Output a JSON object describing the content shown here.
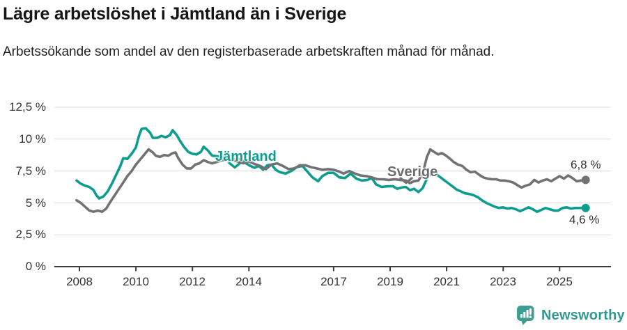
{
  "header": {
    "title": "Lägre arbetslöshet i Jämtland än i Sverige",
    "subtitle": "Arbetssökande som andel av den registerbaserade arbetskraften månad för månad."
  },
  "footer": {
    "brand": "Newsworthy",
    "logo_icon": "newsworthy-pin-barchart-icon",
    "brand_color": "#2f9a8d"
  },
  "chart_data": {
    "type": "line",
    "unit": "%",
    "grid": "horizontal",
    "x_axis": {
      "ticks": [
        "2008",
        "2010",
        "2012",
        "2014",
        "2017",
        "2019",
        "2021",
        "2023",
        "2025"
      ]
    },
    "y_axis": {
      "range": [
        0,
        12.5
      ],
      "ticks": [
        {
          "label": "12,5 %",
          "value": 12.5
        },
        {
          "label": "10 %",
          "value": 10
        },
        {
          "label": "7,5 %",
          "value": 7.5
        },
        {
          "label": "5 %",
          "value": 5
        },
        {
          "label": "2,5 %",
          "value": 2.5
        },
        {
          "label": "0 %",
          "value": 0
        }
      ]
    },
    "colors": {
      "jamtland": "#0c9d8e",
      "sverige": "#717275",
      "gridline": "#dcdcdc",
      "axis": "#3d3d3d",
      "annotation_text": "#333333"
    },
    "series": [
      {
        "id": "jamtland",
        "name": "Jämtland",
        "color": "#0c9d8e",
        "end_label": "4,6 %",
        "end_value": 4.6,
        "points": [
          [
            2007.9,
            6.75
          ],
          [
            2008.05,
            6.5
          ],
          [
            2008.2,
            6.35
          ],
          [
            2008.35,
            6.25
          ],
          [
            2008.5,
            6.0
          ],
          [
            2008.6,
            5.6
          ],
          [
            2008.7,
            5.35
          ],
          [
            2008.85,
            5.5
          ],
          [
            2009.0,
            5.9
          ],
          [
            2009.15,
            6.5
          ],
          [
            2009.3,
            7.2
          ],
          [
            2009.45,
            7.9
          ],
          [
            2009.55,
            8.5
          ],
          [
            2009.7,
            8.45
          ],
          [
            2009.85,
            8.85
          ],
          [
            2010.0,
            9.35
          ],
          [
            2010.1,
            10.2
          ],
          [
            2010.2,
            10.8
          ],
          [
            2010.35,
            10.85
          ],
          [
            2010.5,
            10.5
          ],
          [
            2010.6,
            10.1
          ],
          [
            2010.75,
            10.1
          ],
          [
            2010.9,
            10.25
          ],
          [
            2011.05,
            10.15
          ],
          [
            2011.2,
            10.3
          ],
          [
            2011.3,
            10.7
          ],
          [
            2011.45,
            10.3
          ],
          [
            2011.55,
            9.9
          ],
          [
            2011.7,
            9.4
          ],
          [
            2011.85,
            9.0
          ],
          [
            2012.0,
            8.85
          ],
          [
            2012.15,
            8.8
          ],
          [
            2012.3,
            9.0
          ],
          [
            2012.4,
            9.4
          ],
          [
            2012.55,
            9.1
          ],
          [
            2012.7,
            8.7
          ],
          [
            2012.9,
            8.65
          ],
          [
            2013.1,
            8.6
          ],
          [
            2013.3,
            8.55
          ],
          [
            2013.5,
            8.4
          ],
          [
            2013.7,
            8.45
          ],
          [
            2013.9,
            8.1
          ],
          [
            2014.05,
            7.9
          ],
          [
            2014.2,
            7.75
          ],
          [
            2014.35,
            7.9
          ],
          [
            2014.5,
            7.6
          ],
          [
            2014.65,
            7.95
          ],
          [
            2014.8,
            8.0
          ],
          [
            2014.95,
            7.6
          ],
          [
            2015.1,
            7.4
          ],
          [
            2015.3,
            7.3
          ],
          [
            2015.5,
            7.5
          ],
          [
            2015.7,
            7.8
          ],
          [
            2015.9,
            7.9
          ],
          [
            2016.05,
            7.5
          ],
          [
            2016.25,
            7.0
          ],
          [
            2016.45,
            6.7
          ],
          [
            2016.6,
            7.1
          ],
          [
            2016.8,
            7.35
          ],
          [
            2017.0,
            7.35
          ],
          [
            2017.2,
            7.0
          ],
          [
            2017.4,
            6.95
          ],
          [
            2017.6,
            7.3
          ],
          [
            2017.8,
            6.9
          ],
          [
            2018.0,
            6.75
          ],
          [
            2018.2,
            6.8
          ],
          [
            2018.35,
            6.95
          ],
          [
            2018.5,
            6.45
          ],
          [
            2018.7,
            6.25
          ],
          [
            2018.9,
            6.3
          ],
          [
            2019.1,
            6.3
          ],
          [
            2019.25,
            6.1
          ],
          [
            2019.4,
            6.2
          ],
          [
            2019.55,
            6.25
          ],
          [
            2019.7,
            6.0
          ],
          [
            2019.85,
            6.1
          ],
          [
            2020.0,
            5.85
          ],
          [
            2020.15,
            6.15
          ],
          [
            2020.3,
            6.9
          ],
          [
            2020.45,
            7.35
          ],
          [
            2020.6,
            7.3
          ],
          [
            2020.75,
            7.05
          ],
          [
            2020.9,
            6.8
          ],
          [
            2021.05,
            6.55
          ],
          [
            2021.2,
            6.3
          ],
          [
            2021.35,
            6.05
          ],
          [
            2021.5,
            5.9
          ],
          [
            2021.65,
            5.75
          ],
          [
            2021.8,
            5.7
          ],
          [
            2021.95,
            5.6
          ],
          [
            2022.1,
            5.45
          ],
          [
            2022.25,
            5.2
          ],
          [
            2022.4,
            5.0
          ],
          [
            2022.55,
            4.85
          ],
          [
            2022.7,
            4.7
          ],
          [
            2022.85,
            4.6
          ],
          [
            2023.0,
            4.65
          ],
          [
            2023.15,
            4.55
          ],
          [
            2023.3,
            4.6
          ],
          [
            2023.45,
            4.5
          ],
          [
            2023.6,
            4.35
          ],
          [
            2023.75,
            4.5
          ],
          [
            2023.9,
            4.65
          ],
          [
            2024.05,
            4.5
          ],
          [
            2024.2,
            4.3
          ],
          [
            2024.35,
            4.45
          ],
          [
            2024.5,
            4.6
          ],
          [
            2024.65,
            4.5
          ],
          [
            2024.8,
            4.4
          ],
          [
            2024.95,
            4.4
          ],
          [
            2025.1,
            4.6
          ],
          [
            2025.25,
            4.65
          ],
          [
            2025.4,
            4.55
          ],
          [
            2025.55,
            4.6
          ],
          [
            2025.75,
            4.6
          ],
          [
            2025.92,
            4.6
          ]
        ]
      },
      {
        "id": "sverige",
        "name": "Sverige",
        "color": "#717275",
        "end_label": "6,8 %",
        "end_value": 6.8,
        "points": [
          [
            2007.9,
            5.2
          ],
          [
            2008.05,
            5.0
          ],
          [
            2008.2,
            4.7
          ],
          [
            2008.35,
            4.4
          ],
          [
            2008.5,
            4.3
          ],
          [
            2008.65,
            4.4
          ],
          [
            2008.8,
            4.3
          ],
          [
            2008.95,
            4.55
          ],
          [
            2009.1,
            5.1
          ],
          [
            2009.25,
            5.6
          ],
          [
            2009.4,
            6.1
          ],
          [
            2009.55,
            6.6
          ],
          [
            2009.7,
            7.1
          ],
          [
            2009.85,
            7.5
          ],
          [
            2010.0,
            8.0
          ],
          [
            2010.15,
            8.4
          ],
          [
            2010.3,
            8.8
          ],
          [
            2010.45,
            9.2
          ],
          [
            2010.6,
            8.95
          ],
          [
            2010.7,
            8.7
          ],
          [
            2010.85,
            8.6
          ],
          [
            2011.0,
            8.75
          ],
          [
            2011.15,
            8.7
          ],
          [
            2011.3,
            8.9
          ],
          [
            2011.4,
            8.95
          ],
          [
            2011.5,
            8.5
          ],
          [
            2011.65,
            8.0
          ],
          [
            2011.8,
            7.7
          ],
          [
            2011.95,
            7.7
          ],
          [
            2012.1,
            8.0
          ],
          [
            2012.25,
            8.1
          ],
          [
            2012.4,
            8.35
          ],
          [
            2012.55,
            8.2
          ],
          [
            2012.7,
            8.1
          ],
          [
            2012.85,
            8.2
          ],
          [
            2013.0,
            8.3
          ],
          [
            2013.2,
            8.4
          ],
          [
            2013.4,
            8.35
          ],
          [
            2013.6,
            8.25
          ],
          [
            2013.8,
            8.1
          ],
          [
            2014.0,
            8.25
          ],
          [
            2014.2,
            8.05
          ],
          [
            2014.4,
            7.9
          ],
          [
            2014.6,
            7.65
          ],
          [
            2014.8,
            8.0
          ],
          [
            2015.0,
            8.1
          ],
          [
            2015.2,
            7.9
          ],
          [
            2015.4,
            7.65
          ],
          [
            2015.6,
            7.7
          ],
          [
            2015.8,
            7.95
          ],
          [
            2016.0,
            7.95
          ],
          [
            2016.2,
            7.8
          ],
          [
            2016.4,
            7.7
          ],
          [
            2016.6,
            7.6
          ],
          [
            2016.8,
            7.65
          ],
          [
            2017.0,
            7.6
          ],
          [
            2017.2,
            7.45
          ],
          [
            2017.35,
            7.3
          ],
          [
            2017.55,
            7.5
          ],
          [
            2017.75,
            7.3
          ],
          [
            2017.95,
            7.15
          ],
          [
            2018.15,
            7.1
          ],
          [
            2018.35,
            7.0
          ],
          [
            2018.55,
            6.85
          ],
          [
            2018.75,
            6.85
          ],
          [
            2018.95,
            6.8
          ],
          [
            2019.15,
            6.85
          ],
          [
            2019.35,
            6.8
          ],
          [
            2019.55,
            6.75
          ],
          [
            2019.7,
            6.55
          ],
          [
            2019.85,
            6.7
          ],
          [
            2020.0,
            6.75
          ],
          [
            2020.15,
            7.3
          ],
          [
            2020.3,
            8.6
          ],
          [
            2020.42,
            9.2
          ],
          [
            2020.55,
            9.0
          ],
          [
            2020.7,
            8.8
          ],
          [
            2020.82,
            8.9
          ],
          [
            2020.95,
            8.75
          ],
          [
            2021.1,
            8.5
          ],
          [
            2021.25,
            8.2
          ],
          [
            2021.4,
            8.0
          ],
          [
            2021.55,
            7.9
          ],
          [
            2021.7,
            7.6
          ],
          [
            2021.85,
            7.4
          ],
          [
            2022.0,
            7.45
          ],
          [
            2022.15,
            7.2
          ],
          [
            2022.3,
            7.0
          ],
          [
            2022.45,
            6.9
          ],
          [
            2022.6,
            6.85
          ],
          [
            2022.75,
            6.85
          ],
          [
            2022.9,
            6.75
          ],
          [
            2023.05,
            6.75
          ],
          [
            2023.2,
            6.7
          ],
          [
            2023.35,
            6.6
          ],
          [
            2023.5,
            6.4
          ],
          [
            2023.65,
            6.2
          ],
          [
            2023.8,
            6.35
          ],
          [
            2023.95,
            6.45
          ],
          [
            2024.1,
            6.8
          ],
          [
            2024.25,
            6.6
          ],
          [
            2024.4,
            6.75
          ],
          [
            2024.55,
            6.85
          ],
          [
            2024.7,
            6.7
          ],
          [
            2024.85,
            6.9
          ],
          [
            2025.0,
            7.1
          ],
          [
            2025.15,
            6.9
          ],
          [
            2025.3,
            7.15
          ],
          [
            2025.45,
            6.95
          ],
          [
            2025.6,
            6.7
          ],
          [
            2025.75,
            6.75
          ],
          [
            2025.92,
            6.8
          ]
        ]
      }
    ]
  }
}
